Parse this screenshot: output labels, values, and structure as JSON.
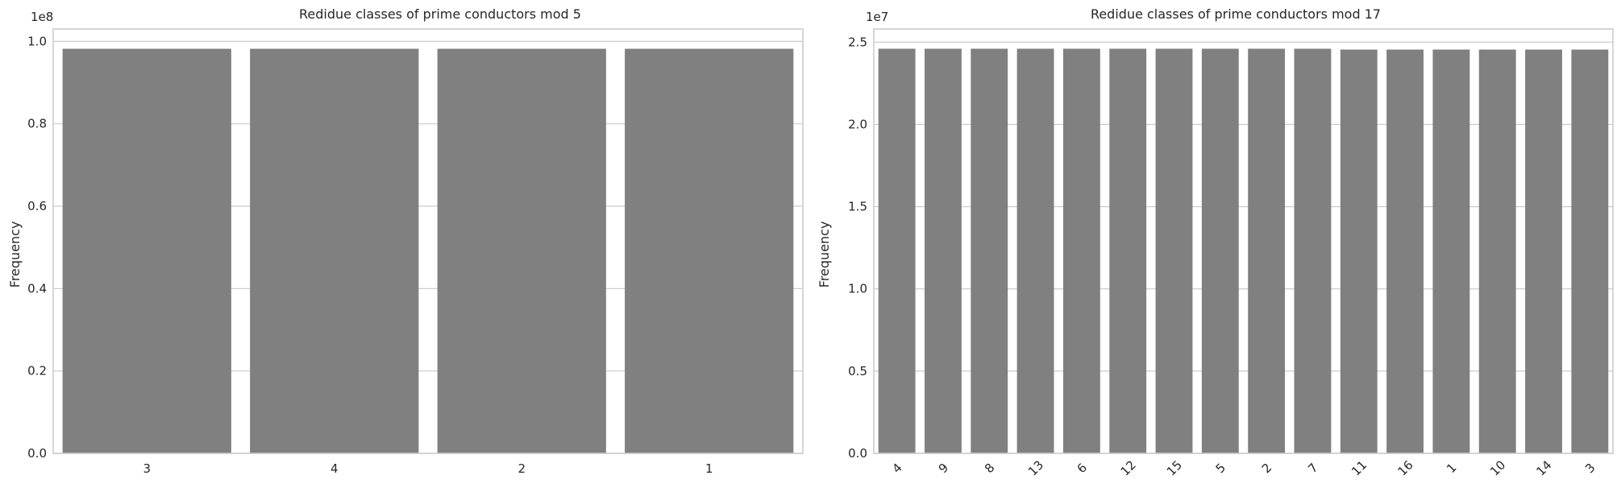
{
  "figure": {
    "bar_color": "#808080",
    "grid_color": "#cccccc",
    "background": "#ffffff"
  },
  "chart_data": [
    {
      "type": "bar",
      "title": "Redidue classes of prime conductors mod 5",
      "xlabel": "",
      "ylabel": "Frequency",
      "offset_text": "1e8",
      "scale": 100000000,
      "ylim": [
        0,
        1.03
      ],
      "yticks": [
        0.0,
        0.2,
        0.4,
        0.6,
        0.8,
        1.0
      ],
      "ytick_labels": [
        "0.0",
        "0.2",
        "0.4",
        "0.6",
        "0.8",
        "1.0"
      ],
      "grid": "y",
      "xtick_rotation": 0,
      "categories": [
        "3",
        "4",
        "2",
        "1"
      ],
      "values": [
        0.982,
        0.982,
        0.982,
        0.982
      ]
    },
    {
      "type": "bar",
      "title": "Redidue classes of prime conductors mod 17",
      "xlabel": "",
      "ylabel": "Frequency",
      "offset_text": "1e7",
      "scale": 10000000,
      "ylim": [
        0,
        2.58
      ],
      "yticks": [
        0.0,
        0.5,
        1.0,
        1.5,
        2.0,
        2.5
      ],
      "ytick_labels": [
        "0.0",
        "0.5",
        "1.0",
        "1.5",
        "2.0",
        "2.5"
      ],
      "grid": "y",
      "xtick_rotation": -45,
      "categories": [
        "4",
        "9",
        "8",
        "13",
        "6",
        "12",
        "15",
        "5",
        "2",
        "7",
        "11",
        "16",
        "1",
        "10",
        "14",
        "3"
      ],
      "values": [
        2.46,
        2.46,
        2.46,
        2.46,
        2.46,
        2.46,
        2.46,
        2.46,
        2.46,
        2.46,
        2.455,
        2.455,
        2.455,
        2.455,
        2.455,
        2.455
      ]
    }
  ]
}
